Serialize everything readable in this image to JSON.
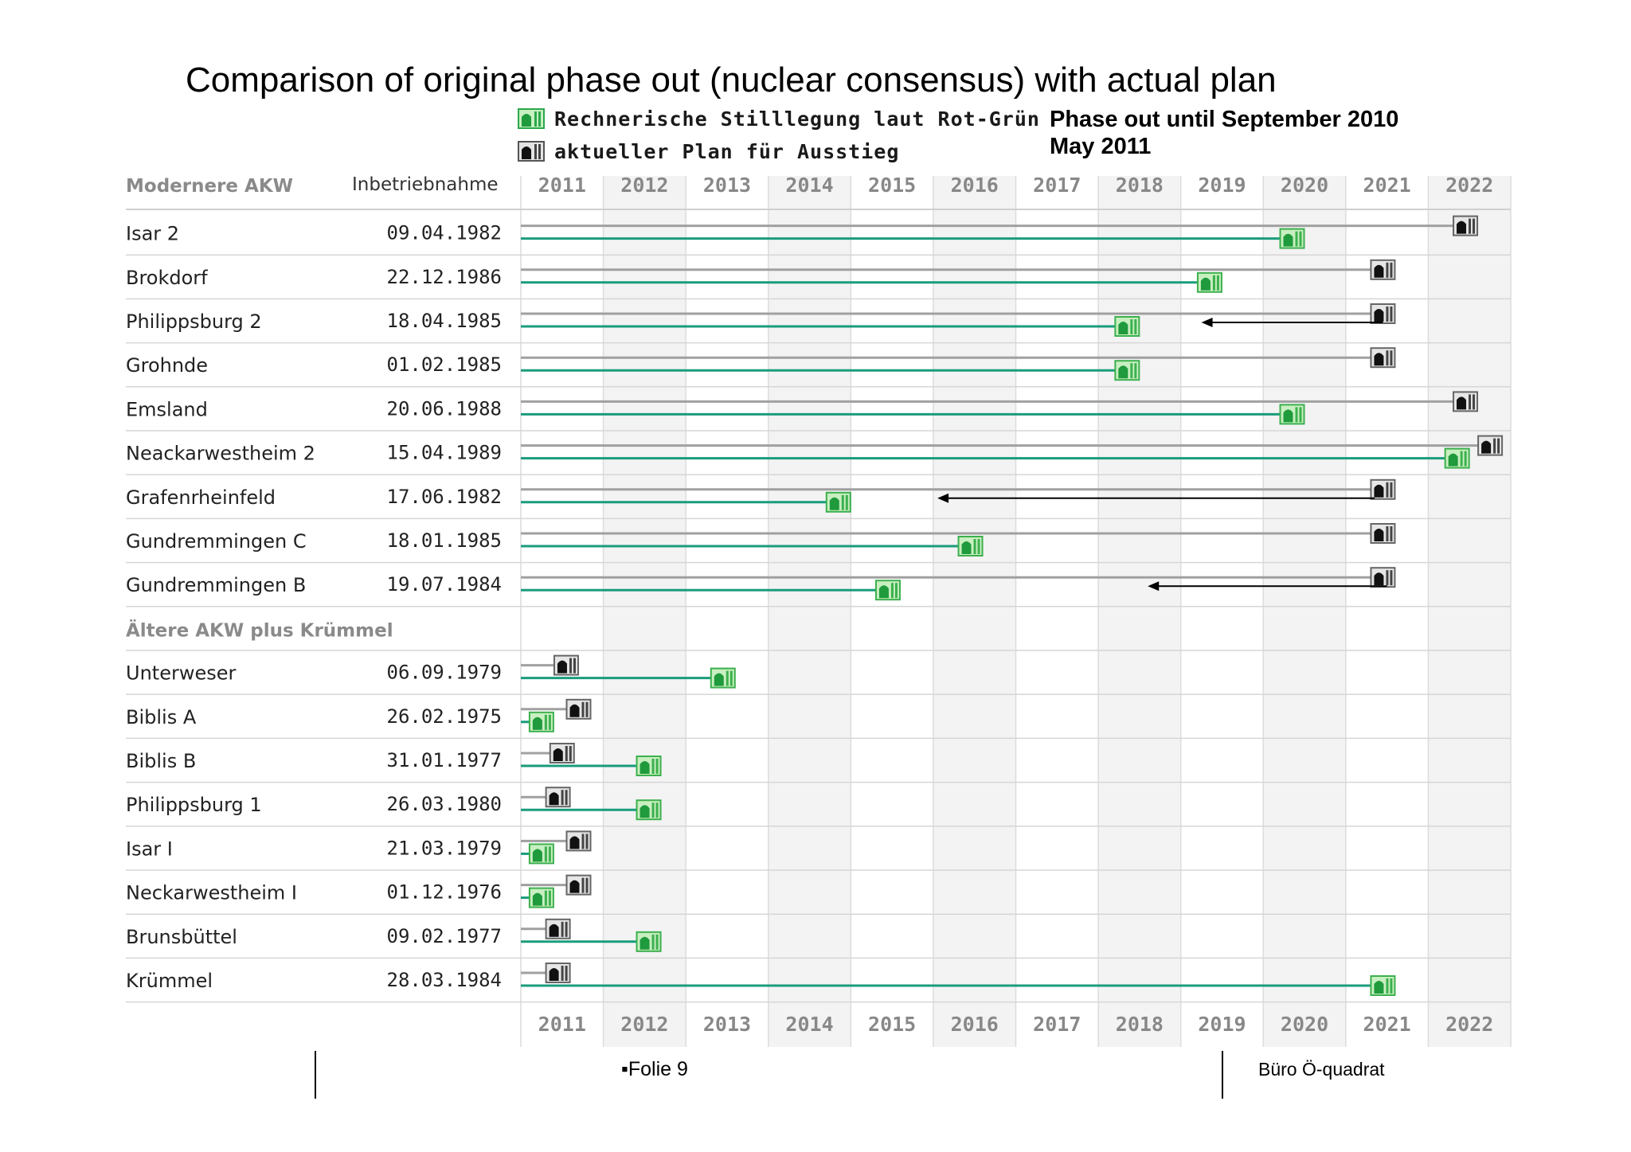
{
  "slide": {
    "title": "Comparison of original phase out (nuclear consensus) with actual plan",
    "note_line1": "Phase out until September 2010",
    "note_line2": "May 2011",
    "legend": [
      {
        "label": "Rechnerische Stilllegung laut Rot-Grün",
        "icon": "green-reactor-icon",
        "color": "#2aa84a"
      },
      {
        "label": "aktueller Plan für Ausstieg",
        "icon": "black-reactor-icon",
        "color": "#1a1a1a"
      }
    ],
    "footer": {
      "folie": "▪Folie 9",
      "buero": "Büro Ö-quadrat"
    }
  },
  "chart_data": {
    "type": "gantt",
    "colors": {
      "green": "#1a9c7c",
      "grey": "#a0a0a0",
      "arrow": "#000000"
    },
    "header": {
      "col1": "Modernere AKW",
      "col2": "Inbetriebnahme"
    },
    "years": [
      "2011",
      "2012",
      "2013",
      "2014",
      "2015",
      "2016",
      "2017",
      "2018",
      "2019",
      "2020",
      "2021",
      "2022"
    ],
    "xlim": [
      2011,
      2023
    ],
    "section2_label": "Ältere AKW plus Krümmel",
    "rows": [
      {
        "name": "Isar 2",
        "date": "09.04.1982",
        "original": 2020.35,
        "actual": 2022.45
      },
      {
        "name": "Brokdorf",
        "date": "22.12.1986",
        "original": 2019.35,
        "actual": 2021.45
      },
      {
        "name": "Philippsburg 2",
        "date": "18.04.1985",
        "original": 2018.35,
        "actual": 2021.45,
        "arrow": [
          2021.45,
          2019.25
        ]
      },
      {
        "name": "Grohnde",
        "date": "01.02.1985",
        "original": 2018.35,
        "actual": 2021.45
      },
      {
        "name": "Emsland",
        "date": "20.06.1988",
        "original": 2020.35,
        "actual": 2022.45
      },
      {
        "name": "Neackarwestheim 2",
        "date": "15.04.1989",
        "original": 2022.35,
        "actual": 2022.75
      },
      {
        "name": "Grafenrheinfeld",
        "date": "17.06.1982",
        "original": 2014.85,
        "actual": 2021.45,
        "arrow": [
          2021.35,
          2016.05
        ]
      },
      {
        "name": "Gundremmingen C",
        "date": "18.01.1985",
        "original": 2016.45,
        "actual": 2021.45
      },
      {
        "name": "Gundremmingen B",
        "date": "19.07.1984",
        "original": 2015.45,
        "actual": 2021.45,
        "arrow": [
          2021.5,
          2018.6
        ]
      },
      {
        "section": true
      },
      {
        "name": "Unterweser",
        "date": "06.09.1979",
        "original": 2013.45,
        "actual": 2011.55
      },
      {
        "name": "Biblis A",
        "date": "26.02.1975",
        "original": 2011.25,
        "actual": 2011.7
      },
      {
        "name": "Biblis B",
        "date": "31.01.1977",
        "original": 2012.55,
        "actual": 2011.5
      },
      {
        "name": "Philippsburg 1",
        "date": "26.03.1980",
        "original": 2012.55,
        "actual": 2011.45
      },
      {
        "name": "Isar I",
        "date": "21.03.1979",
        "original": 2011.25,
        "actual": 2011.7
      },
      {
        "name": "Neckarwestheim I",
        "date": "01.12.1976",
        "original": 2011.25,
        "actual": 2011.7
      },
      {
        "name": "Brunsbüttel",
        "date": "09.02.1977",
        "original": 2012.55,
        "actual": 2011.45
      },
      {
        "name": "Krümmel",
        "date": "28.03.1984",
        "original": 2021.45,
        "actual": 2011.45
      }
    ]
  }
}
